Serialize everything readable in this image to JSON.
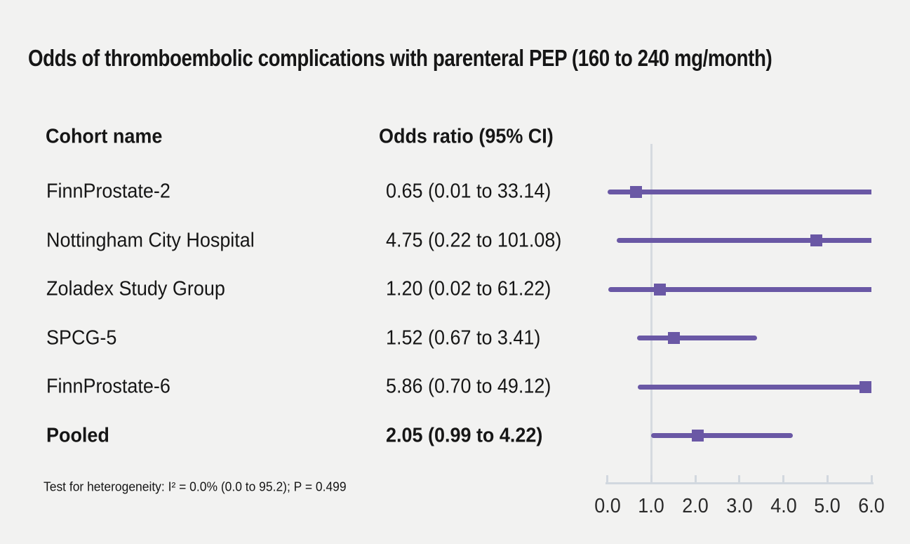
{
  "headers": {
    "cohort": "Cohort name",
    "odds_ratio": "Odds ratio (95% CI)"
  },
  "footnote": "Test for heterogeneity: I² = 0.0% (0.0 to 95.2); P = 0.499",
  "colors": {
    "accent_purple": "#6a58a5",
    "reference_line": "#d6dae0",
    "axis": "#d2d8df",
    "background": "#f2f2f1",
    "text": "#161616"
  },
  "chart_data": {
    "type": "forest",
    "title": "Odds of thromboembolic complications with parenteral PEP (160 to 240 mg/month)",
    "xlim": [
      0.0,
      6.0
    ],
    "x_tick_values": [
      0,
      1,
      2,
      3,
      4,
      5,
      6
    ],
    "x_tick_labels": [
      "0.0",
      "1.0",
      "2.0",
      "3.0",
      "4.0",
      "5.0",
      "6.0"
    ],
    "reference_line_x": 1.0,
    "grid": false,
    "legend": false,
    "rows": [
      {
        "label": "FinnProstate-2",
        "display": "0.65 (0.01 to 33.14)",
        "or": 0.65,
        "ci_low": 0.01,
        "ci_high": 33.14,
        "bold": false
      },
      {
        "label": "Nottingham City Hospital",
        "display": "4.75 (0.22 to 101.08)",
        "or": 4.75,
        "ci_low": 0.22,
        "ci_high": 101.08,
        "bold": false
      },
      {
        "label": "Zoladex Study Group",
        "display": "1.20 (0.02 to 61.22)",
        "or": 1.2,
        "ci_low": 0.02,
        "ci_high": 61.22,
        "bold": false
      },
      {
        "label": "SPCG-5",
        "display": "1.52 (0.67 to 3.41)",
        "or": 1.52,
        "ci_low": 0.67,
        "ci_high": 3.41,
        "bold": false
      },
      {
        "label": "FinnProstate-6",
        "display": "5.86 (0.70 to 49.12)",
        "or": 5.86,
        "ci_low": 0.7,
        "ci_high": 49.12,
        "bold": false
      },
      {
        "label": "Pooled",
        "display": "2.05 (0.99 to 4.22)",
        "or": 2.05,
        "ci_low": 0.99,
        "ci_high": 4.22,
        "bold": true
      }
    ]
  }
}
